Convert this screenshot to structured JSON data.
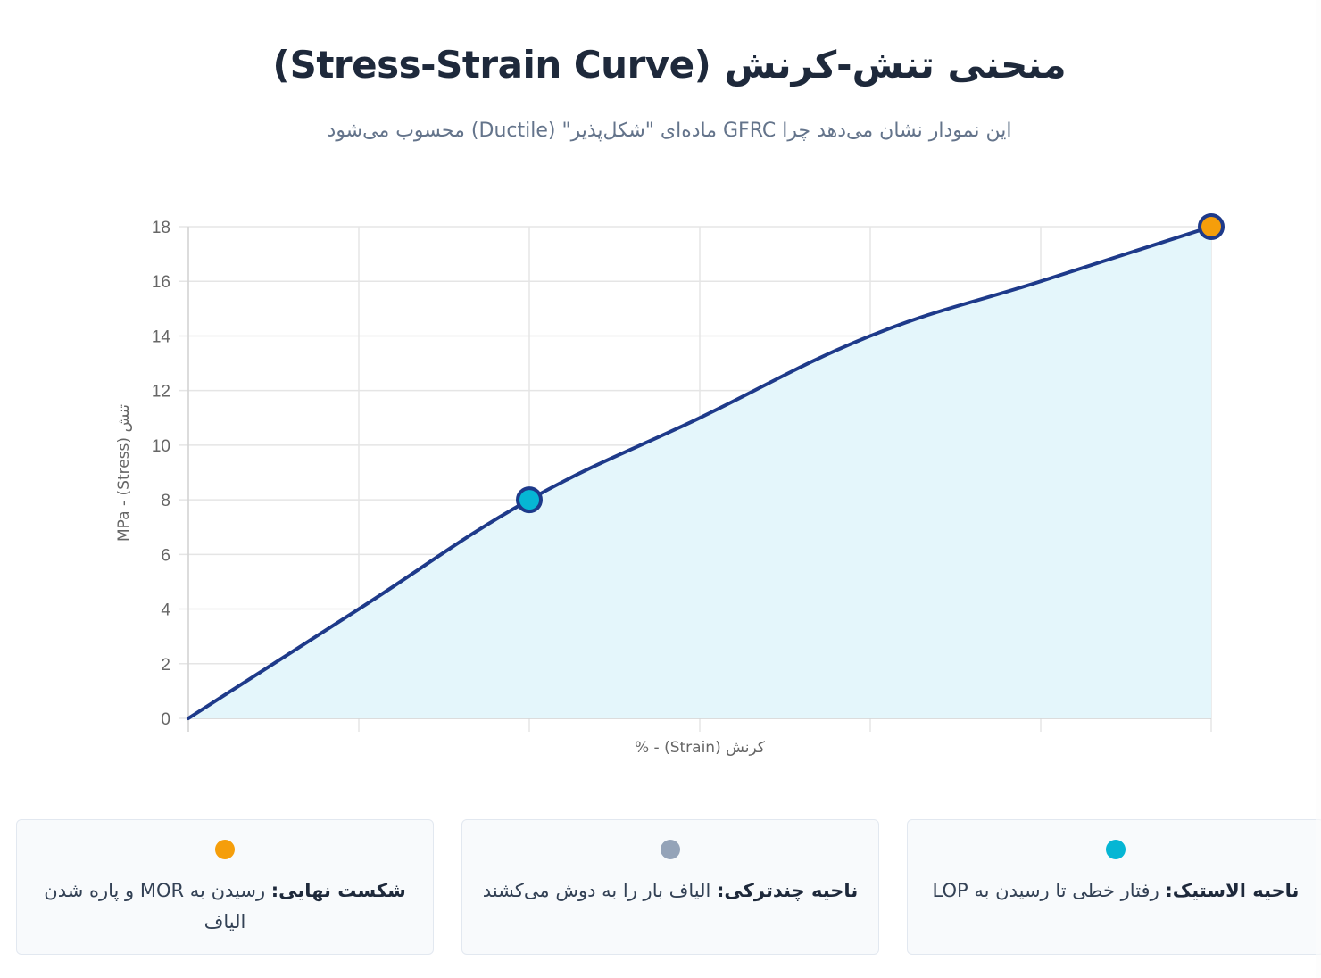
{
  "header": {
    "title": "منحنی تنش-کرنش (Stress-Strain Curve)",
    "subtitle": "این نمودار نشان می‌دهد چرا GFRC ماده‌ای \"شکل‌پذیر\" (Ductile) محسوب می‌شود"
  },
  "chart_data": {
    "type": "area",
    "title": "منحنی تنش-کرنش (Stress-Strain Curve)",
    "xlabel": "کرنش (Strain) - %",
    "ylabel": "تنش (Stress) - MPa",
    "x": [
      0,
      1,
      2,
      3,
      4,
      5,
      6
    ],
    "x_tick_labels": [],
    "series": [
      {
        "name": "Stress",
        "values": [
          0,
          4,
          8,
          11,
          14,
          16,
          18
        ],
        "line_color": "#1e3a8a",
        "fill_color": "#e0f5fb"
      }
    ],
    "highlight_points": [
      {
        "x": 2,
        "y": 8,
        "color": "#06b6d4",
        "label": "LOP"
      },
      {
        "x": 6,
        "y": 18,
        "color": "#f59e0b",
        "label": "MOR"
      }
    ],
    "y_ticks": [
      0,
      2,
      4,
      6,
      8,
      10,
      12,
      14,
      16,
      18
    ],
    "ylim": [
      0,
      18
    ],
    "grid": true,
    "legend_position": "bottom-cards"
  },
  "chart": {
    "y_tick_labels": [
      "0",
      "2",
      "4",
      "6",
      "8",
      "10",
      "12",
      "14",
      "16",
      "18"
    ],
    "xlabel": "کرنش (Strain) - %",
    "ylabel": "تنش (Stress) - MPa"
  },
  "legend_cards": [
    {
      "color": "#f59e0b",
      "bold": "شکست نهایی:",
      "text": " رسیدن به MOR و پاره شدن الیاف"
    },
    {
      "color": "#94a3b8",
      "bold": "ناحیه چندترکی:",
      "text": " الیاف بار را به دوش می‌کشند"
    },
    {
      "color": "#06b6d4",
      "bold": "ناحیه الاستیک:",
      "text": " رفتار خطی تا رسیدن به LOP"
    }
  ]
}
